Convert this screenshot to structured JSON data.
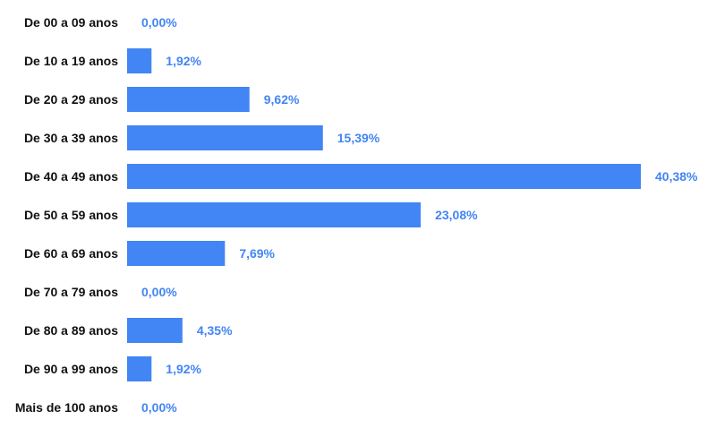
{
  "chart_data": {
    "type": "bar",
    "orientation": "horizontal",
    "categories": [
      "De 00 a 09 anos",
      "De 10 a 19 anos",
      "De 20 a 29 anos",
      "De 30 a 39 anos",
      "De 40 a 49 anos",
      "De 50 a 59 anos",
      "De 60 a 69 anos",
      "De 70 a 79 anos",
      "De 80 a 89 anos",
      "De 90 a 99 anos",
      "Mais de 100 anos"
    ],
    "values": [
      0.0,
      1.92,
      9.62,
      15.39,
      40.38,
      23.08,
      7.69,
      0.0,
      4.35,
      1.92,
      0.0
    ],
    "value_labels": [
      "0,00%",
      "1,92%",
      "9,62%",
      "15,39%",
      "40,38%",
      "23,08%",
      "7,69%",
      "0,00%",
      "4,35%",
      "1,92%",
      "0,00%"
    ],
    "title": "",
    "xlabel": "",
    "ylabel": "",
    "xlim": [
      0,
      40.38
    ],
    "grid": false,
    "legend": "none",
    "colors": {
      "bar": "#4285f4",
      "value_label": "#4285f4",
      "category_label": "#111111"
    }
  }
}
